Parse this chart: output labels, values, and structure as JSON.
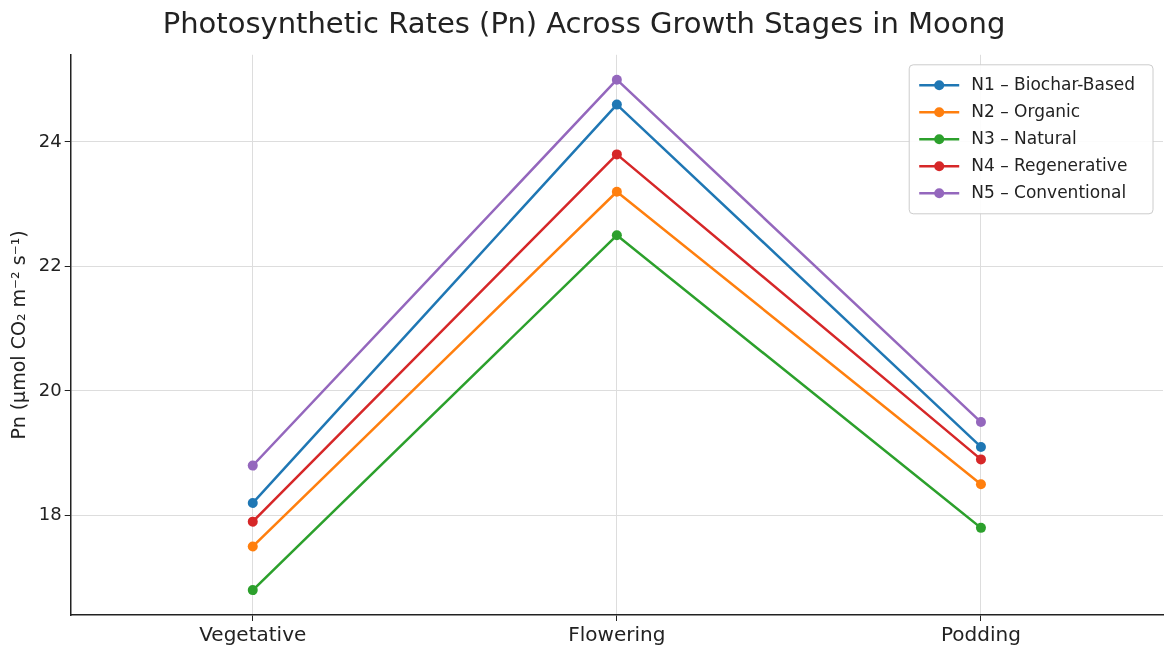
{
  "chart_data": {
    "type": "line",
    "title": "Photosynthetic Rates (Pn) Across Growth Stages in Moong",
    "ylabel": "Pn (µmol CO₂ m⁻² s⁻¹)",
    "categories": [
      "Vegetative",
      "Flowering",
      "Podding"
    ],
    "series": [
      {
        "name": "N1 – Biochar-Based",
        "color": "#1f77b4",
        "values": [
          18.2,
          24.6,
          19.1
        ]
      },
      {
        "name": "N2 – Organic",
        "color": "#ff7f0e",
        "values": [
          17.5,
          23.2,
          18.5
        ]
      },
      {
        "name": "N3 – Natural",
        "color": "#2ca02c",
        "values": [
          16.8,
          22.5,
          17.8
        ]
      },
      {
        "name": "N4 – Regenerative",
        "color": "#d62728",
        "values": [
          17.9,
          23.8,
          18.9
        ]
      },
      {
        "name": "N5 – Conventional",
        "color": "#9467bd",
        "values": [
          18.8,
          25.0,
          19.5
        ]
      }
    ],
    "ylim": [
      16.4,
      25.4
    ],
    "yticks": [
      18,
      20,
      22,
      24
    ],
    "grid": true,
    "legend": "top right",
    "marker": "circle",
    "line_style": "solid"
  }
}
